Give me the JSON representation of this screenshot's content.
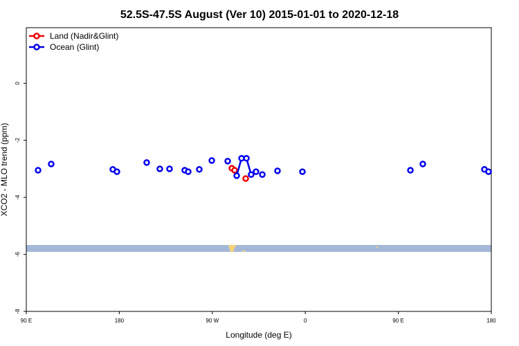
{
  "chart_data": {
    "type": "line",
    "title": "52.5S-47.5S August (Ver 10)   2015-01-01 to 2020-12-18",
    "xlabel": "Longitude (deg E)",
    "ylabel": "XCO2 - MLO trend (ppm)",
    "xlim": [
      90,
      540
    ],
    "ylim": [
      -8,
      1.95
    ],
    "xticks": [
      {
        "value": 90,
        "label": "90 E"
      },
      {
        "value": 180,
        "label": "180"
      },
      {
        "value": 270,
        "label": "90 W"
      },
      {
        "value": 360,
        "label": "0"
      },
      {
        "value": 450,
        "label": "90 E"
      },
      {
        "value": 540,
        "label": "180"
      }
    ],
    "yticks": [
      -8,
      -6,
      -4,
      -2,
      0
    ],
    "legend": "top-left",
    "series": [
      {
        "name": "Land (Nadir&Glint)",
        "color": "#ee0000",
        "x": [
          288.9,
          291.6,
          302.3
        ],
        "values": [
          -2.98,
          -3.05,
          -3.34
        ]
      },
      {
        "name": "Ocean (Glint)",
        "color": "#0000ee",
        "x": [
          101.4,
          114.1,
          173.7,
          177.7,
          206.5,
          219.2,
          228.6,
          243.3,
          246.7,
          257.4,
          269.5,
          284.9,
          293.6,
          298.3,
          303.0,
          307.6,
          312.3,
          318.4,
          333.1,
          357.2,
          461.7,
          473.7,
          533.3,
          537.3
        ],
        "values": [
          -3.05,
          -2.83,
          -3.02,
          -3.1,
          -2.78,
          -3.0,
          -3.0,
          -3.05,
          -3.1,
          -3.02,
          -2.71,
          -2.73,
          -3.24,
          -2.63,
          -2.63,
          -3.2,
          -3.1,
          -3.2,
          -3.07,
          -3.1,
          -3.05,
          -2.83,
          -3.02,
          -3.1
        ]
      }
    ]
  }
}
